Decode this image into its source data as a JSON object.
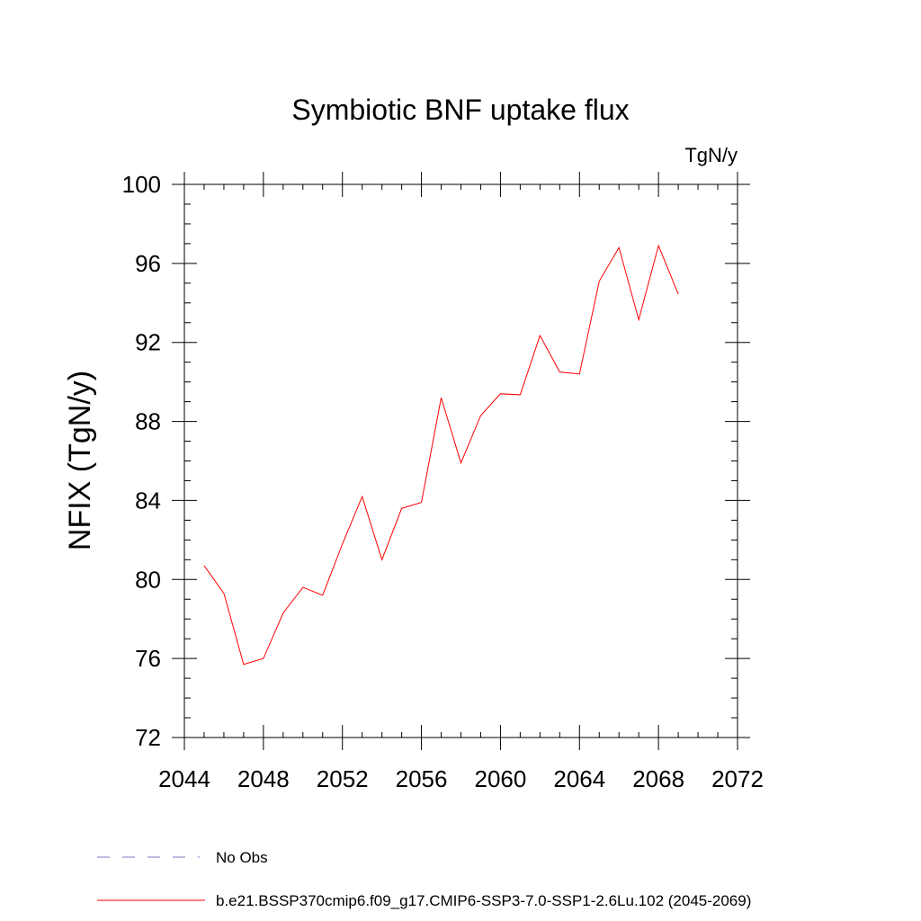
{
  "chart_data": {
    "type": "line",
    "title": "Symbiotic BNF uptake flux",
    "units_label": "TgN/y",
    "ylabel": "NFIX  (TgN/y)",
    "xlabel": "",
    "xlim": [
      2044,
      2072
    ],
    "ylim": [
      72,
      100
    ],
    "x_ticks": [
      2044,
      2048,
      2052,
      2056,
      2060,
      2064,
      2068,
      2072
    ],
    "y_ticks": [
      72,
      76,
      80,
      84,
      88,
      92,
      96,
      100
    ],
    "grid": false,
    "series": [
      {
        "name": "b.e21.BSSP370cmip6.f09_g17.CMIP6-SSP3-7.0-SSP1-2.6Lu.102 (2045-2069)",
        "color": "#ff0000",
        "x": [
          2045,
          2046,
          2047,
          2048,
          2049,
          2050,
          2051,
          2052,
          2053,
          2054,
          2055,
          2056,
          2057,
          2058,
          2059,
          2060,
          2061,
          2062,
          2063,
          2064,
          2065,
          2066,
          2067,
          2068,
          2069
        ],
        "y": [
          80.7,
          79.3,
          75.7,
          76.0,
          78.3,
          79.6,
          79.2,
          81.8,
          84.2,
          81.0,
          83.6,
          83.9,
          89.2,
          85.9,
          88.3,
          89.4,
          89.35,
          92.35,
          90.5,
          90.4,
          95.1,
          96.8,
          93.15,
          96.9,
          94.45
        ]
      }
    ],
    "legend": {
      "placement": "bottom",
      "entries": [
        {
          "label": "No Obs",
          "color": "#7f6fc0",
          "style": "dashed"
        },
        {
          "label": "b.e21.BSSP370cmip6.f09_g17.CMIP6-SSP3-7.0-SSP1-2.6Lu.102 (2045-2069)",
          "color": "#ff0000",
          "style": "solid"
        }
      ]
    }
  }
}
